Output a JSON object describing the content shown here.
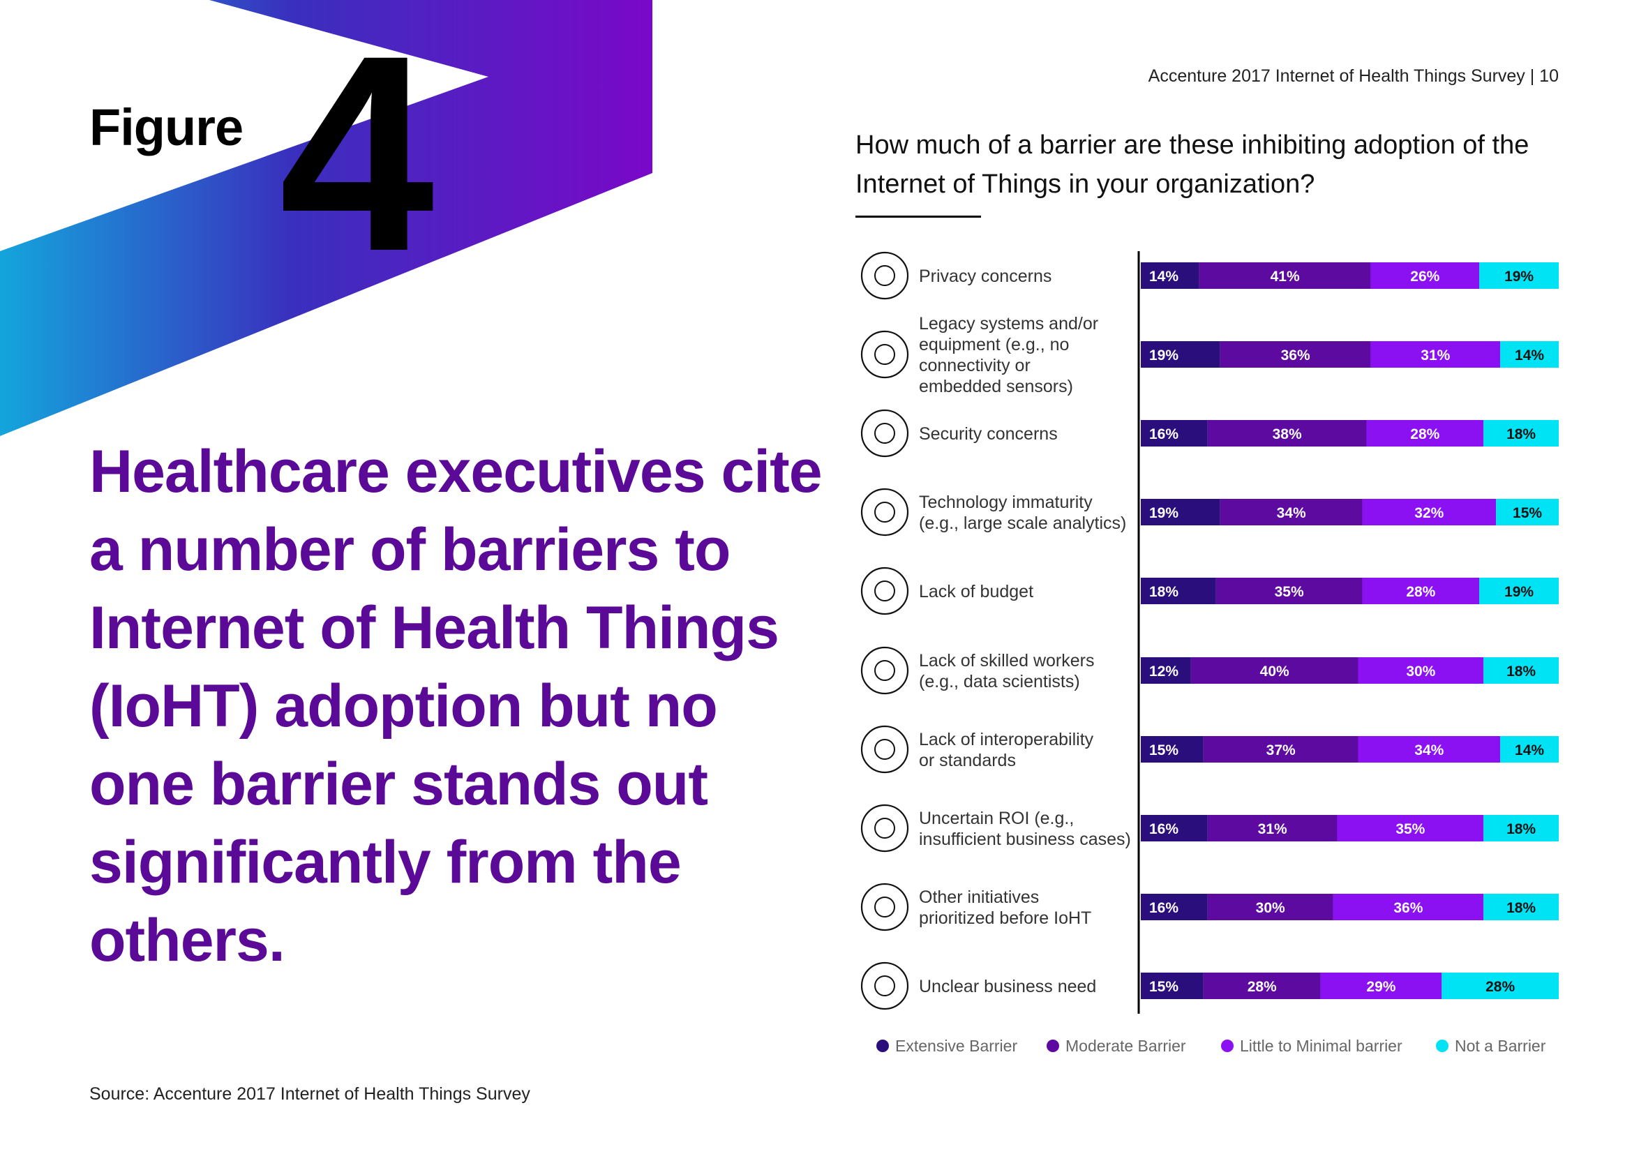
{
  "page": {
    "figure_word": "Figure",
    "figure_number": "4",
    "header": "Accenture 2017 Internet of Health Things Survey | 10",
    "question": "How much of a barrier are these inhibiting adoption of the Internet of Things in your organization?",
    "headline": "Healthcare executives cite a number of barriers to Internet of Health Things (IoHT) adoption but no one barrier stands out significantly from the others.",
    "source": "Source: Accenture 2017 Internet of Health Things Survey"
  },
  "colors": {
    "extensive": "#2a0e7c",
    "moderate": "#5d0aa0",
    "little": "#8b10f2",
    "not": "#00e3f5",
    "headline": "#5a0a96"
  },
  "chart_data": {
    "type": "bar",
    "stacked": true,
    "orientation": "horizontal",
    "unit": "%",
    "categories": [
      "Privacy concerns",
      "Legacy systems and/or equipment (e.g., no connectivity or embedded sensors)",
      "Security concerns",
      "Technology immaturity (e.g., large scale analytics)",
      "Lack of budget",
      "Lack of skilled workers (e.g., data scientists)",
      "Lack of interoperability or standards",
      "Uncertain ROI (e.g., insufficient business cases)",
      "Other initiatives prioritized before IoHT",
      "Unclear business need"
    ],
    "category_lines": [
      [
        "Privacy concerns"
      ],
      [
        "Legacy systems and/or",
        "equipment (e.g., no",
        "connectivity or",
        "embedded sensors)"
      ],
      [
        "Security concerns"
      ],
      [
        "Technology immaturity",
        "(e.g., large scale analytics)"
      ],
      [
        "Lack of budget"
      ],
      [
        "Lack of skilled workers",
        "(e.g., data scientists)"
      ],
      [
        "Lack of interoperability",
        "or standards"
      ],
      [
        "Uncertain ROI (e.g.,",
        "insufficient business cases)"
      ],
      [
        "Other initiatives",
        "prioritized before IoHT"
      ],
      [
        "Unclear business need"
      ]
    ],
    "icons": [
      "eye-lock-icon",
      "laptop-icon",
      "padlock-icon",
      "sensor-icon",
      "no-budget-icon",
      "worker-icon",
      "arrows-icon",
      "dollar-question-icon",
      "redirect-icon",
      "network-icon"
    ],
    "series": [
      {
        "name": "Extensive Barrier",
        "color_key": "extensive",
        "values": [
          14,
          19,
          16,
          19,
          18,
          12,
          15,
          16,
          16,
          15
        ]
      },
      {
        "name": "Moderate Barrier",
        "color_key": "moderate",
        "values": [
          41,
          36,
          38,
          34,
          35,
          40,
          37,
          31,
          30,
          28
        ]
      },
      {
        "name": "Little to Minimal barrier",
        "color_key": "little",
        "values": [
          26,
          31,
          28,
          32,
          28,
          30,
          34,
          35,
          36,
          29
        ]
      },
      {
        "name": "Not a Barrier",
        "color_key": "not",
        "values": [
          19,
          14,
          18,
          15,
          19,
          18,
          14,
          18,
          18,
          28
        ]
      }
    ],
    "legend_position": "bottom",
    "grid": false
  }
}
